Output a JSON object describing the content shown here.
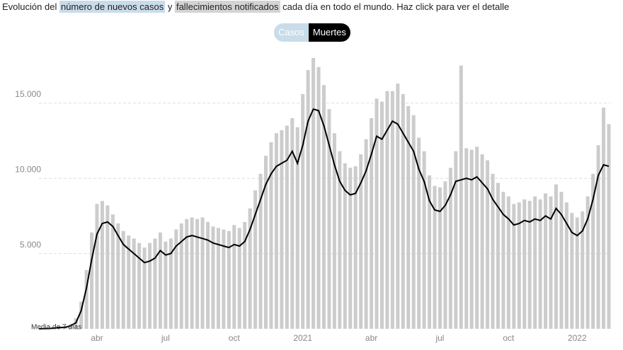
{
  "header": {
    "text_1": "Evolución del",
    "link_cases": "número de nuevos casos",
    "text_2": "y",
    "link_deaths": "fallecimientos notificados",
    "text_3": "cada día en todo el mundo. Haz click para ver el detalle"
  },
  "buttons": [
    "Casos",
    "Muertes"
  ],
  "chart_data": {
    "type": "bar-line",
    "categories": [
      null,
      null,
      null,
      null,
      null,
      null,
      null,
      null,
      null,
      null,
      null,
      "abr",
      null,
      null,
      null,
      null,
      null,
      null,
      null,
      null,
      null,
      null,
      null,
      null,
      "jul",
      null,
      null,
      null,
      null,
      null,
      null,
      null,
      null,
      null,
      null,
      null,
      null,
      "oct",
      null,
      null,
      null,
      null,
      null,
      null,
      null,
      null,
      null,
      null,
      null,
      null,
      "2021",
      null,
      null,
      null,
      null,
      null,
      null,
      null,
      null,
      null,
      null,
      null,
      null,
      "abr",
      null,
      null,
      null,
      null,
      null,
      null,
      null,
      null,
      null,
      null,
      null,
      null,
      "jul",
      null,
      null,
      null,
      null,
      null,
      null,
      null,
      null,
      null,
      null,
      null,
      null,
      "oct",
      null,
      null,
      null,
      null,
      null,
      null,
      null,
      null,
      null,
      null,
      null,
      null,
      "2022",
      null,
      null,
      null,
      null,
      null,
      null
    ],
    "series": [
      {
        "color": "#cccccc",
        "values": [
          0,
          0,
          0,
          0,
          100,
          150,
          300,
          700,
          1800,
          3900,
          6400,
          8300,
          8500,
          8200,
          7600,
          7000,
          6500,
          6200,
          6000,
          5700,
          5400,
          5700,
          6000,
          6400,
          5800,
          6000,
          6600,
          7000,
          7300,
          7400,
          7300,
          7400,
          7100,
          6800,
          6700,
          6600,
          6500,
          6900,
          6700,
          7100,
          8000,
          9200,
          10300,
          11500,
          12400,
          13000,
          13200,
          13500,
          14000,
          13400,
          15600,
          17200,
          18000,
          17400,
          16200,
          14600,
          13000,
          11800,
          11000,
          10700,
          10800,
          11600,
          12600,
          14000,
          15300,
          15100,
          15800,
          15800,
          16300,
          15600,
          14800,
          14200,
          12700,
          11800,
          10200,
          9500,
          9400,
          9800,
          10700,
          11800,
          17500,
          12000,
          11900,
          12100,
          11600,
          11200,
          10300,
          9700,
          9100,
          8800,
          8300,
          8400,
          8600,
          8500,
          8800,
          8600,
          9000,
          8800,
          9600,
          9100,
          8400,
          7700,
          7400,
          7800,
          8800,
          10300,
          12200,
          14700,
          13600
        ]
      },
      {
        "name": "Media de 7 días",
        "color": "#000000",
        "values": [
          0,
          10,
          20,
          50,
          80,
          100,
          200,
          400,
          1200,
          2700,
          4600,
          6300,
          7000,
          7100,
          6800,
          6200,
          5600,
          5300,
          5000,
          4700,
          4400,
          4500,
          4700,
          5200,
          4900,
          5000,
          5500,
          5800,
          6100,
          6200,
          6100,
          6000,
          5900,
          5700,
          5600,
          5500,
          5400,
          5600,
          5500,
          5800,
          6600,
          7600,
          8600,
          9600,
          10300,
          10800,
          11000,
          11200,
          11800,
          11000,
          12200,
          13800,
          14600,
          14500,
          13500,
          12200,
          10900,
          9800,
          9200,
          8900,
          9000,
          9700,
          10500,
          11600,
          12800,
          12600,
          13200,
          13800,
          13600,
          13000,
          12400,
          11800,
          10600,
          9800,
          8500,
          7900,
          7800,
          8200,
          8900,
          9800,
          9900,
          10000,
          9900,
          10100,
          9700,
          9300,
          8600,
          8100,
          7600,
          7300,
          6900,
          7000,
          7200,
          7100,
          7300,
          7200,
          7500,
          7300,
          8000,
          7600,
          7000,
          6400,
          6200,
          6500,
          7300,
          8600,
          10200,
          10900,
          10800
        ]
      }
    ],
    "ylim": [
      0,
      18000
    ],
    "yticks": [
      {
        "value": 5000,
        "label": "5.000"
      },
      {
        "value": 10000,
        "label": "10.000"
      },
      {
        "value": 15000,
        "label": "15.000"
      }
    ],
    "grid": true
  }
}
